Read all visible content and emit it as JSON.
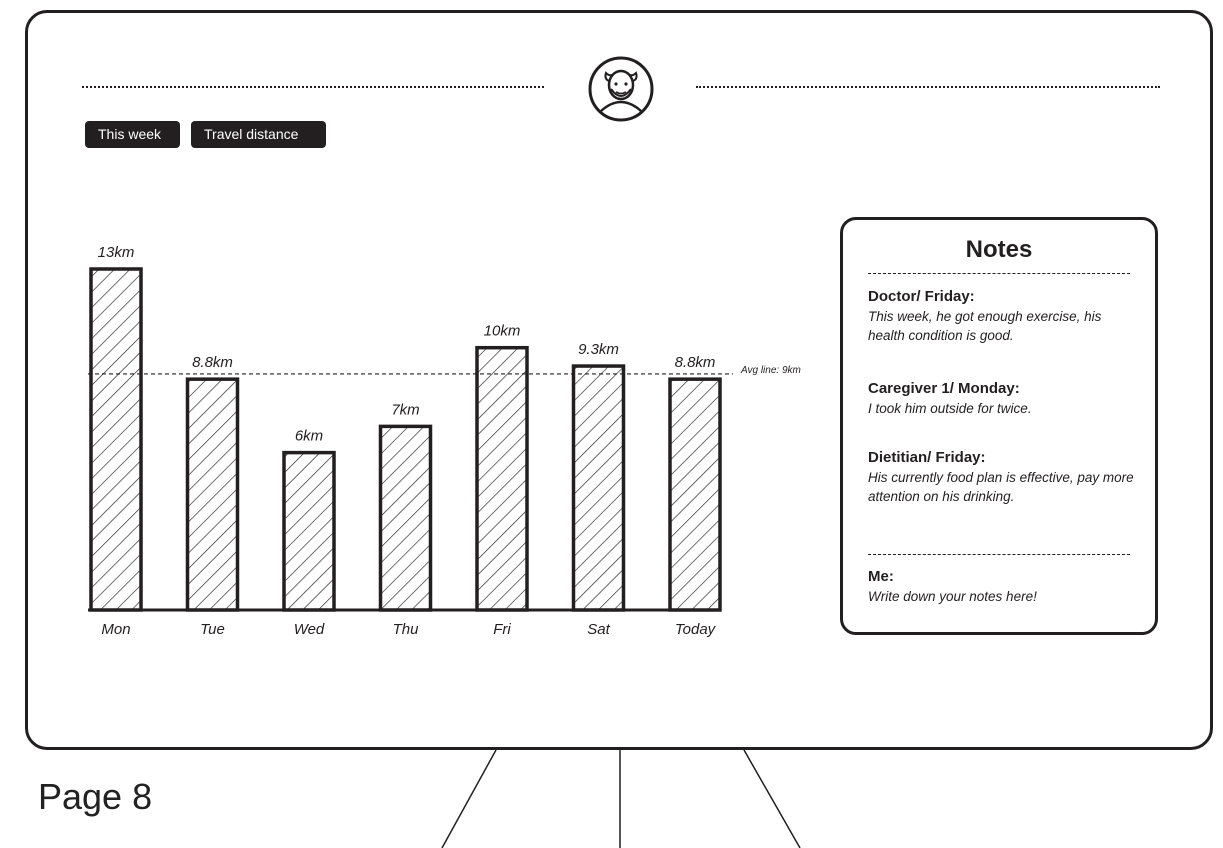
{
  "page": {
    "label": "Page 8"
  },
  "filters": {
    "period": "This week",
    "metric": "Travel distance"
  },
  "avatar": {
    "icon": "elderly-man-icon"
  },
  "chart_data": {
    "type": "bar",
    "categories": [
      "Mon",
      "Tue",
      "Wed",
      "Thu",
      "Fri",
      "Sat",
      "Today"
    ],
    "values": [
      13,
      8.8,
      6,
      7,
      10,
      9.3,
      8.8
    ],
    "value_labels": [
      "13km",
      "8.8km",
      "6km",
      "7km",
      "10km",
      "9.3km",
      "8.8km"
    ],
    "unit": "km",
    "average": 9,
    "average_label": "Avg line: 9km",
    "ylim": [
      0,
      13
    ],
    "grid": false,
    "bar_fill": "diagonal-hatch"
  },
  "notes": {
    "title": "Notes",
    "entries": [
      {
        "author": "Doctor/ Friday:",
        "text": "This week, he got enough exercise, his health condition is good."
      },
      {
        "author": "Caregiver 1/ Monday:",
        "text": "I took him outside for twice."
      },
      {
        "author": "Dietitian/ Friday:",
        "text": "His currently food plan is effective, pay more attention on his drinking."
      }
    ],
    "me": {
      "author": "Me:",
      "placeholder": "Write down your notes here!"
    }
  }
}
